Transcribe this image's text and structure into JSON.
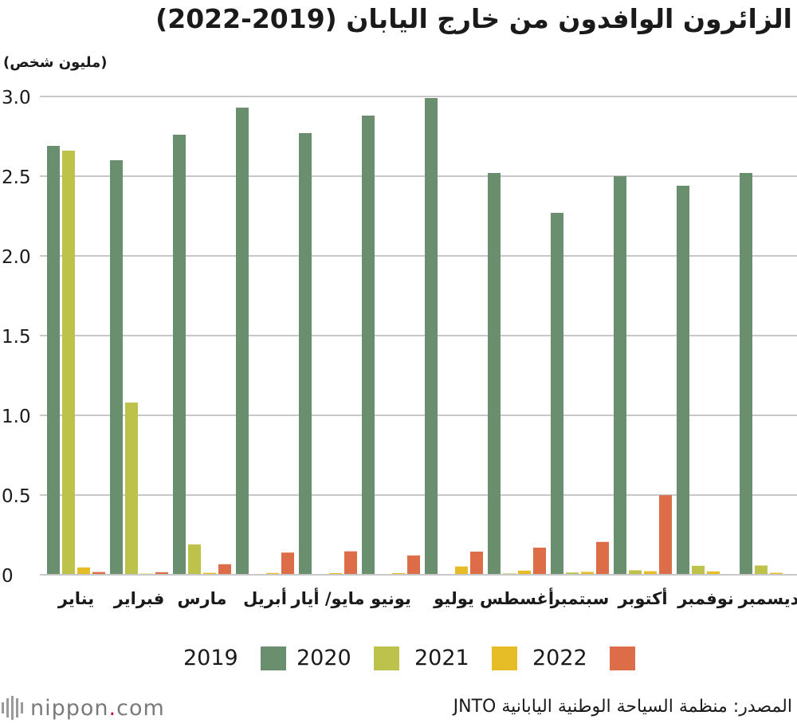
{
  "title": "الزائرون الوافدون من خارج اليابان (2019-2022)",
  "unit_label": "(مليون شخص)",
  "source": "المصدر: منظمة السياحة الوطنية اليابانية JNTO",
  "brand": {
    "name": "nippon",
    "dot": ".",
    "suffix": "com"
  },
  "colors": {
    "2019": "#6a8f6e",
    "2020": "#bcc24a",
    "2021": "#e6bd26",
    "2022": "#dc6d48",
    "grid": "#c8c8c8"
  },
  "chart_data": {
    "type": "bar",
    "title": "الزائرون الوافدون من خارج اليابان (2019-2022)",
    "ylabel": "(مليون شخص)",
    "xlabel": "",
    "ylim": [
      0,
      3.0
    ],
    "yticks": [
      "0",
      "0.5",
      "1.0",
      "1.5",
      "2.0",
      "2.5",
      "3.0"
    ],
    "categories": [
      "يناير",
      "فبراير",
      "مارس",
      "أبريل",
      "مايو/ أيار",
      "يونيو",
      "يوليو",
      "أغسطس",
      "سبتمبر",
      "أكتوبر",
      "نوفمبر",
      "ديسمبر"
    ],
    "series": [
      {
        "name": "2019",
        "values": [
          2.69,
          2.6,
          2.76,
          2.93,
          2.77,
          2.88,
          2.99,
          2.52,
          2.27,
          2.5,
          2.44,
          2.52
        ]
      },
      {
        "name": "2020",
        "values": [
          2.66,
          1.08,
          0.19,
          0.003,
          0.002,
          0.003,
          0.004,
          0.008,
          0.014,
          0.028,
          0.056,
          0.058
        ]
      },
      {
        "name": "2021",
        "values": [
          0.046,
          0.007,
          0.012,
          0.011,
          0.01,
          0.01,
          0.052,
          0.026,
          0.018,
          0.022,
          0.021,
          0.012
        ]
      },
      {
        "name": "2022",
        "values": [
          0.017,
          0.016,
          0.066,
          0.139,
          0.147,
          0.121,
          0.145,
          0.17,
          0.206,
          0.499,
          0.0,
          0.0
        ]
      }
    ]
  }
}
